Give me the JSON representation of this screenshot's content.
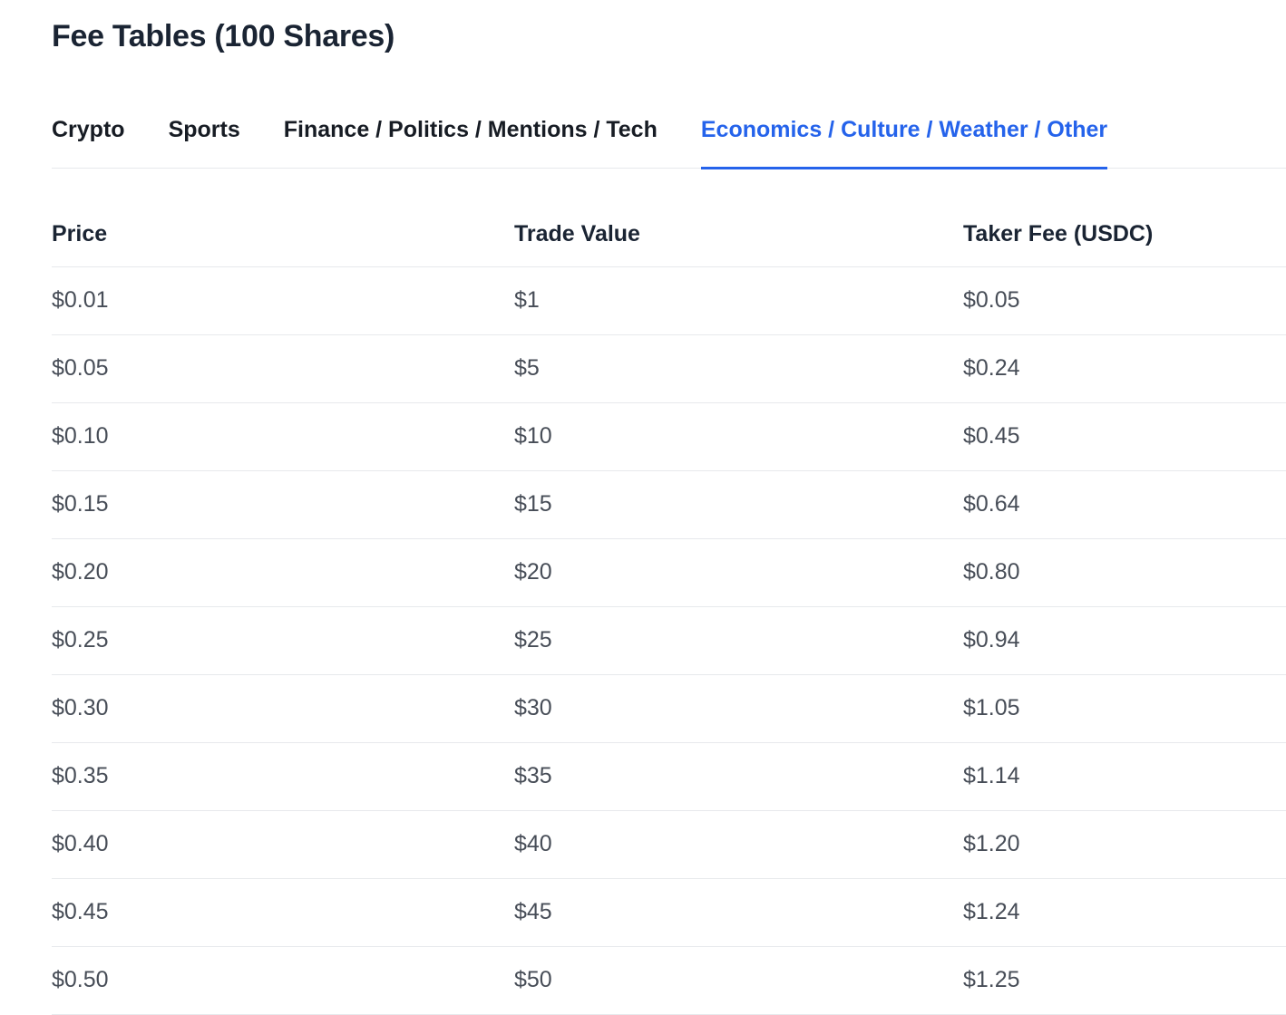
{
  "page": {
    "title": "Fee Tables (100 Shares)"
  },
  "tabs": [
    {
      "label": "Crypto",
      "active": false
    },
    {
      "label": "Sports",
      "active": false
    },
    {
      "label": "Finance / Politics / Mentions / Tech",
      "active": false
    },
    {
      "label": "Economics / Culture / Weather / Other",
      "active": true
    }
  ],
  "table": {
    "columns": [
      "Price",
      "Trade Value",
      "Taker Fee (USDC)"
    ],
    "rows": [
      [
        "$0.01",
        "$1",
        "$0.05"
      ],
      [
        "$0.05",
        "$5",
        "$0.24"
      ],
      [
        "$0.10",
        "$10",
        "$0.45"
      ],
      [
        "$0.15",
        "$15",
        "$0.64"
      ],
      [
        "$0.20",
        "$20",
        "$0.80"
      ],
      [
        "$0.25",
        "$25",
        "$0.94"
      ],
      [
        "$0.30",
        "$30",
        "$1.05"
      ],
      [
        "$0.35",
        "$35",
        "$1.14"
      ],
      [
        "$0.40",
        "$40",
        "$1.20"
      ],
      [
        "$0.45",
        "$45",
        "$1.24"
      ],
      [
        "$0.50",
        "$50",
        "$1.25"
      ]
    ]
  },
  "colors": {
    "accent": "#2563eb",
    "heading": "#1a2433",
    "tab_inactive": "#171c24",
    "cell_text": "#474d57",
    "divider": "#e7e9ec",
    "background": "#ffffff"
  }
}
